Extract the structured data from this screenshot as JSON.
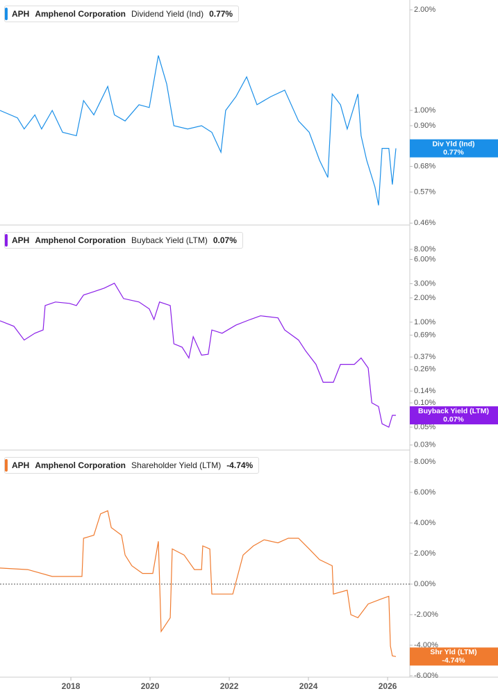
{
  "chart_data": [
    {
      "type": "line",
      "ticker": "APH",
      "company": "Amphenol Corporation",
      "current_label": "0.77%",
      "tag_name": "Div Yld (Ind)",
      "tag_value": "0.77%",
      "log_scale": true,
      "x": [
        2016.21,
        2016.65,
        2016.82,
        2017.09,
        2017.26,
        2017.53,
        2017.79,
        2018.14,
        2018.32,
        2018.58,
        2018.93,
        2019.1,
        2019.37,
        2019.72,
        2019.98,
        2020.21,
        2020.42,
        2020.6,
        2020.95,
        2021.3,
        2021.56,
        2021.79,
        2021.91,
        2022.17,
        2022.44,
        2022.7,
        2023.05,
        2023.4,
        2023.75,
        2024.02,
        2024.28,
        2024.49,
        2024.6,
        2024.81,
        2024.98,
        2025.25,
        2025.33,
        2025.47,
        2025.68,
        2025.77,
        2025.86,
        2026.03,
        2026.12,
        2026.21
      ],
      "series": [
        {
          "name": "Dividend Yield (Ind)",
          "color": "#1a8fe8",
          "values": [
            1.0,
            0.95,
            0.88,
            0.97,
            0.88,
            1.0,
            0.86,
            0.84,
            1.07,
            0.97,
            1.18,
            0.97,
            0.93,
            1.04,
            1.02,
            1.46,
            1.2,
            0.9,
            0.88,
            0.9,
            0.86,
            0.75,
            1.0,
            1.1,
            1.26,
            1.04,
            1.1,
            1.15,
            0.93,
            0.86,
            0.71,
            0.63,
            1.12,
            1.04,
            0.88,
            1.12,
            0.84,
            0.71,
            0.59,
            0.52,
            0.77,
            0.77,
            0.6,
            0.77
          ]
        }
      ],
      "xlim": [
        2016.21,
        2026.56
      ],
      "ylim": [
        0.454,
        2.14
      ],
      "yticks": [
        {
          "value": 2.0,
          "label": "2.00%"
        },
        {
          "value": 1.0,
          "label": "1.00%"
        },
        {
          "value": 0.9,
          "label": "0.90%"
        },
        {
          "value": 0.68,
          "label": "0.68%"
        },
        {
          "value": 0.57,
          "label": "0.57%"
        },
        {
          "value": 0.46,
          "label": "0.46%"
        }
      ]
    },
    {
      "type": "line",
      "ticker": "APH",
      "company": "Amphenol Corporation",
      "current_label": "0.07%",
      "tag_name": "Buyback Yield (LTM)",
      "tag_value": "0.07%",
      "log_scale": true,
      "x": [
        2016.21,
        2016.56,
        2016.82,
        2017.09,
        2017.3,
        2017.35,
        2017.61,
        2017.96,
        2018.14,
        2018.32,
        2018.58,
        2018.84,
        2019.1,
        2019.33,
        2019.72,
        2019.98,
        2020.1,
        2020.24,
        2020.51,
        2020.6,
        2020.81,
        2020.98,
        2021.09,
        2021.3,
        2021.47,
        2021.56,
        2021.82,
        2022.17,
        2022.53,
        2022.79,
        2023.23,
        2023.4,
        2023.75,
        2023.93,
        2024.19,
        2024.37,
        2024.63,
        2024.81,
        2025.16,
        2025.33,
        2025.51,
        2025.6,
        2025.77,
        2025.86,
        2026.03,
        2026.12,
        2026.21
      ],
      "series": [
        {
          "name": "Buyback Yield (LTM)",
          "color": "#8a1ee8",
          "values": [
            1.04,
            0.89,
            0.6,
            0.73,
            0.8,
            1.61,
            1.78,
            1.71,
            1.61,
            2.17,
            2.39,
            2.64,
            3.04,
            1.96,
            1.78,
            1.46,
            1.08,
            1.78,
            1.61,
            0.54,
            0.49,
            0.36,
            0.66,
            0.39,
            0.4,
            0.8,
            0.73,
            0.92,
            1.08,
            1.2,
            1.13,
            0.8,
            0.6,
            0.44,
            0.3,
            0.18,
            0.18,
            0.3,
            0.3,
            0.36,
            0.27,
            0.1,
            0.09,
            0.055,
            0.05,
            0.07,
            0.07
          ]
        }
      ],
      "xlim": [
        2016.21,
        2026.56
      ],
      "ylim": [
        0.026,
        16
      ],
      "yticks": [
        {
          "value": 8,
          "label": "8.00%"
        },
        {
          "value": 6,
          "label": "6.00%"
        },
        {
          "value": 3,
          "label": "3.00%"
        },
        {
          "value": 2,
          "label": "2.00%"
        },
        {
          "value": 1,
          "label": "1.00%"
        },
        {
          "value": 0.69,
          "label": "0.69%"
        },
        {
          "value": 0.37,
          "label": "0.37%"
        },
        {
          "value": 0.26,
          "label": "0.26%"
        },
        {
          "value": 0.14,
          "label": "0.14%"
        },
        {
          "value": 0.1,
          "label": "0.10%"
        },
        {
          "value": 0.05,
          "label": "0.05%"
        },
        {
          "value": 0.03,
          "label": "0.03%"
        }
      ]
    },
    {
      "type": "line",
      "ticker": "APH",
      "company": "Amphenol Corporation",
      "current_label": "-4.74%",
      "tag_name": "Shr Yld (LTM)",
      "tag_value": "-4.74%",
      "log_scale": false,
      "zero_line": true,
      "x": [
        2016.21,
        2016.91,
        2017.53,
        2018.28,
        2018.32,
        2018.58,
        2018.75,
        2018.93,
        2019.02,
        2019.28,
        2019.37,
        2019.54,
        2019.81,
        2020.07,
        2020.21,
        2020.28,
        2020.51,
        2020.56,
        2020.86,
        2021.12,
        2021.3,
        2021.33,
        2021.51,
        2021.56,
        2022.09,
        2022.35,
        2022.61,
        2022.88,
        2023.23,
        2023.49,
        2023.75,
        2024.02,
        2024.28,
        2024.6,
        2024.63,
        2024.98,
        2025.07,
        2025.25,
        2025.51,
        2025.86,
        2026.03,
        2026.07,
        2026.12,
        2026.21
      ],
      "series": [
        {
          "name": "Shareholder Yield (LTM)",
          "color": "#f07b2f",
          "values": [
            1.05,
            0.95,
            0.5,
            0.5,
            3.0,
            3.2,
            4.6,
            4.8,
            3.7,
            3.2,
            1.9,
            1.2,
            0.7,
            0.7,
            2.8,
            -3.1,
            -2.2,
            2.3,
            1.9,
            0.95,
            0.95,
            2.5,
            2.3,
            -0.65,
            -0.65,
            1.9,
            2.5,
            2.9,
            2.7,
            3.0,
            3.0,
            2.3,
            1.6,
            1.2,
            -0.65,
            -0.4,
            -2.0,
            -2.2,
            -1.3,
            -0.95,
            -0.8,
            -4.05,
            -4.7,
            -4.74
          ]
        }
      ],
      "xlim": [
        2016.21,
        2026.56
      ],
      "ylim": [
        -6.09,
        8.77
      ],
      "yticks": [
        {
          "value": 8,
          "label": "8.00%"
        },
        {
          "value": 6,
          "label": "6.00%"
        },
        {
          "value": 4,
          "label": "4.00%"
        },
        {
          "value": 2,
          "label": "2.00%"
        },
        {
          "value": 0,
          "label": "0.00%"
        },
        {
          "value": -2,
          "label": "-2.00%"
        },
        {
          "value": -4,
          "label": "-4.00%"
        },
        {
          "value": -6,
          "label": "-6.00%"
        }
      ],
      "xticks": [
        2018,
        2020,
        2022,
        2024,
        2026
      ]
    }
  ]
}
